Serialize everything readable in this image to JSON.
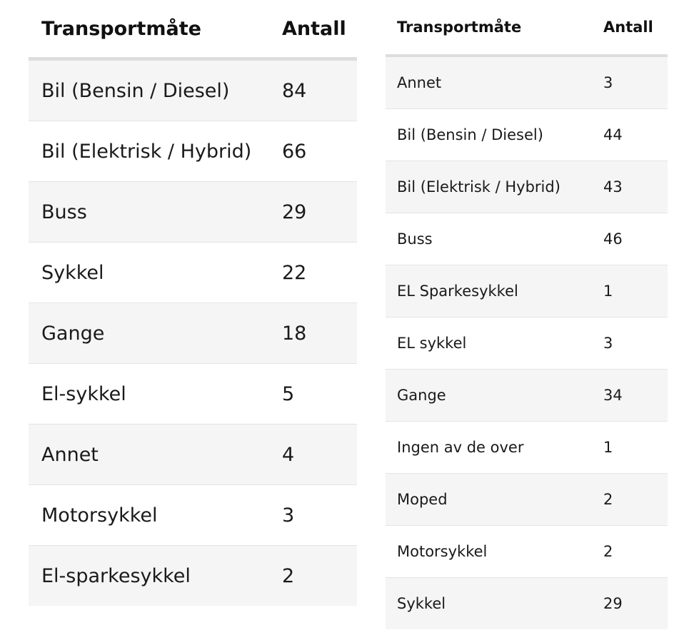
{
  "left_table": {
    "headers": [
      "Transportmåte",
      "Antall"
    ],
    "rows": [
      [
        "Bil (Bensin / Diesel)",
        "84"
      ],
      [
        "Bil (Elektrisk / Hybrid)",
        "66"
      ],
      [
        "Buss",
        "29"
      ],
      [
        "Sykkel",
        "22"
      ],
      [
        "Gange",
        "18"
      ],
      [
        "El-sykkel",
        "5"
      ],
      [
        "Annet",
        "4"
      ],
      [
        "Motorsykkel",
        "3"
      ],
      [
        "El-sparkesykkel",
        "2"
      ]
    ]
  },
  "right_table": {
    "headers": [
      "Transportmåte",
      "Antall"
    ],
    "rows": [
      [
        "Annet",
        "3"
      ],
      [
        "Bil (Bensin / Diesel)",
        "44"
      ],
      [
        "Bil (Elektrisk / Hybrid)",
        "43"
      ],
      [
        "Buss",
        "46"
      ],
      [
        "EL Sparkesykkel",
        "1"
      ],
      [
        "EL sykkel",
        "3"
      ],
      [
        "Gange",
        "34"
      ],
      [
        "Ingen av de over",
        "1"
      ],
      [
        "Moped",
        "2"
      ],
      [
        "Motorsykkel",
        "2"
      ],
      [
        "Sykkel",
        "29"
      ]
    ]
  },
  "colors": {
    "stripe": "#f5f5f5",
    "header_rule": "#dddddd",
    "text": "#1a1a1a"
  }
}
